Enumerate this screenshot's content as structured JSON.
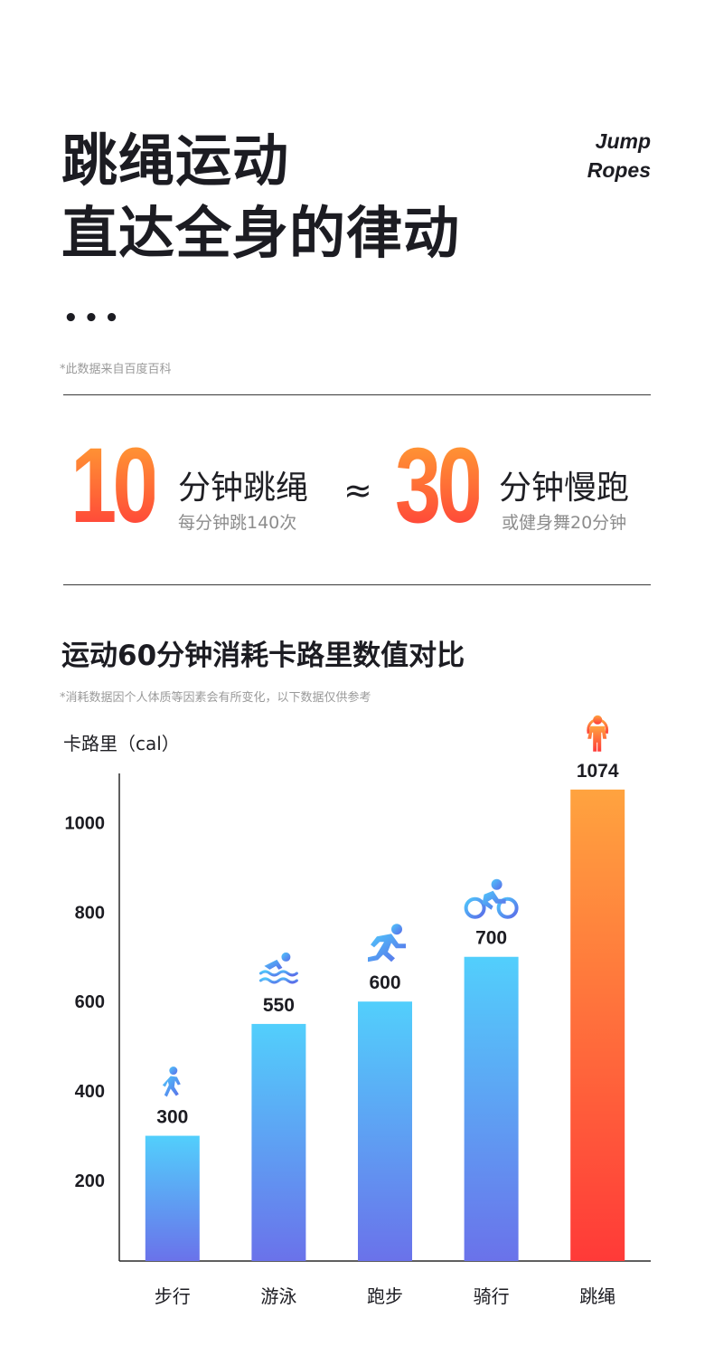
{
  "header": {
    "title_line1": "跳绳运动",
    "title_line2": "直达全身的律动",
    "brand_line1": "Jump",
    "brand_line2": "Ropes",
    "dots": "•••",
    "source_note": "*此数据来自百度百科"
  },
  "comparison": {
    "left_number": "10",
    "left_label": "分钟跳绳",
    "left_sub": "每分钟跳140次",
    "approx_symbol": "≈",
    "right_number": "30",
    "right_label": "分钟慢跑",
    "right_sub": "或健身舞20分钟"
  },
  "chart_section": {
    "title": "运动60分钟消耗卡路里数值对比",
    "note": "*消耗数据因个人体质等因素会有所变化，以下数据仅供参考",
    "unit_label": "卡路里（cal）"
  },
  "colors": {
    "accent_orange": "#ffa033",
    "accent_red": "#ff3b3b",
    "bar_blue_top": "#52cffc",
    "bar_blue_bottom": "#6a72ea",
    "icon_blue": "#4a8cf0"
  },
  "chart_data": {
    "type": "bar",
    "categories": [
      "步行",
      "游泳",
      "跑步",
      "骑行",
      "跳绳"
    ],
    "values": [
      300,
      550,
      600,
      700,
      1074
    ],
    "value_labels": [
      "300",
      "550",
      "600",
      "700",
      "1074"
    ],
    "icons": [
      "walking-icon",
      "swimming-icon",
      "running-icon",
      "cycling-icon",
      "jump-rope-icon"
    ],
    "highlight_index": 4,
    "yticks": [
      200,
      400,
      600,
      800,
      1000
    ],
    "ylim": [
      20,
      1110
    ],
    "ylabel": "卡路里（cal）",
    "xlabel": "",
    "grid": false
  }
}
